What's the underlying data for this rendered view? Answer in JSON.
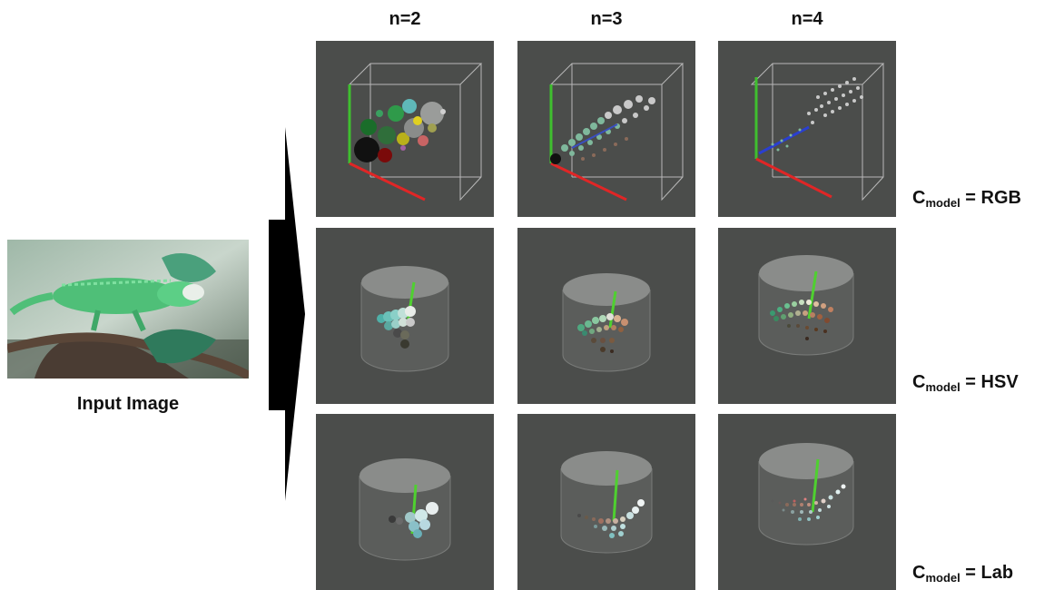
{
  "headers": {
    "n2": "n=2",
    "n3": "n=3",
    "n4": "n=4"
  },
  "input": {
    "caption": "Input Image"
  },
  "rows": {
    "rgb": {
      "c": "C",
      "sub": "model",
      "eq": " = RGB"
    },
    "hsv": {
      "c": "C",
      "sub": "model",
      "eq": " = HSV"
    },
    "lab": {
      "c": "C",
      "sub": "model",
      "eq": " = Lab"
    }
  },
  "colors": {
    "panel_background": "#4b4d4b",
    "axis_green": "#3fbf2f",
    "axis_red": "#e02626",
    "axis_blue": "#2a3fd0",
    "cylinder": "#8a8c8a"
  }
}
